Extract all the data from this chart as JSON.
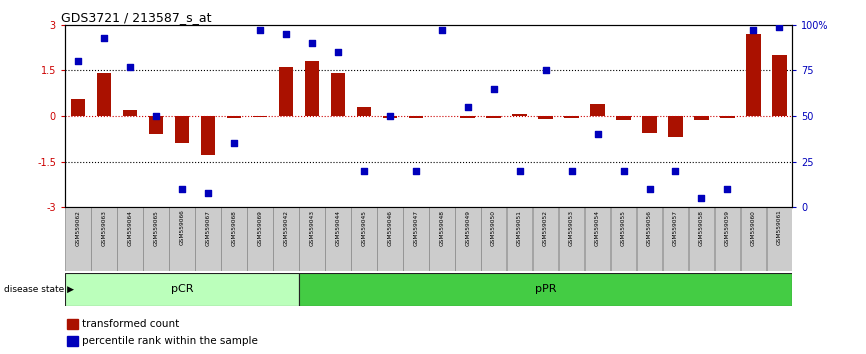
{
  "title": "GDS3721 / 213587_s_at",
  "samples": [
    "GSM559062",
    "GSM559063",
    "GSM559064",
    "GSM559065",
    "GSM559066",
    "GSM559067",
    "GSM559068",
    "GSM559069",
    "GSM559042",
    "GSM559043",
    "GSM559044",
    "GSM559045",
    "GSM559046",
    "GSM559047",
    "GSM559048",
    "GSM559049",
    "GSM559050",
    "GSM559051",
    "GSM559052",
    "GSM559053",
    "GSM559054",
    "GSM559055",
    "GSM559056",
    "GSM559057",
    "GSM559058",
    "GSM559059",
    "GSM559060",
    "GSM559061"
  ],
  "bar_values": [
    0.55,
    1.4,
    0.2,
    -0.6,
    -0.9,
    -1.3,
    -0.08,
    -0.05,
    1.6,
    1.8,
    1.4,
    0.3,
    -0.08,
    -0.08,
    0.0,
    -0.08,
    -0.08,
    0.05,
    -0.1,
    -0.08,
    0.4,
    -0.12,
    -0.55,
    -0.7,
    -0.12,
    -0.08,
    2.7,
    2.0
  ],
  "dot_values": [
    80,
    93,
    77,
    50,
    10,
    8,
    35,
    97,
    95,
    90,
    85,
    20,
    50,
    20,
    97,
    55,
    65,
    20,
    75,
    20,
    40,
    20,
    10,
    20,
    5,
    10,
    97,
    99
  ],
  "pCR_count": 9,
  "pPR_count": 19,
  "ylim": [
    -3,
    3
  ],
  "yticks_left": [
    -3,
    -1.5,
    0,
    1.5,
    3
  ],
  "yticks_right": [
    0,
    25,
    50,
    75,
    100
  ],
  "bar_color": "#AA1100",
  "dot_color": "#0000BB",
  "pCR_color": "#BBFFBB",
  "pPR_color": "#44CC44",
  "label_bg_color": "#CCCCCC",
  "zero_line_color": "#CC0000",
  "grid_line_color": "#333333"
}
